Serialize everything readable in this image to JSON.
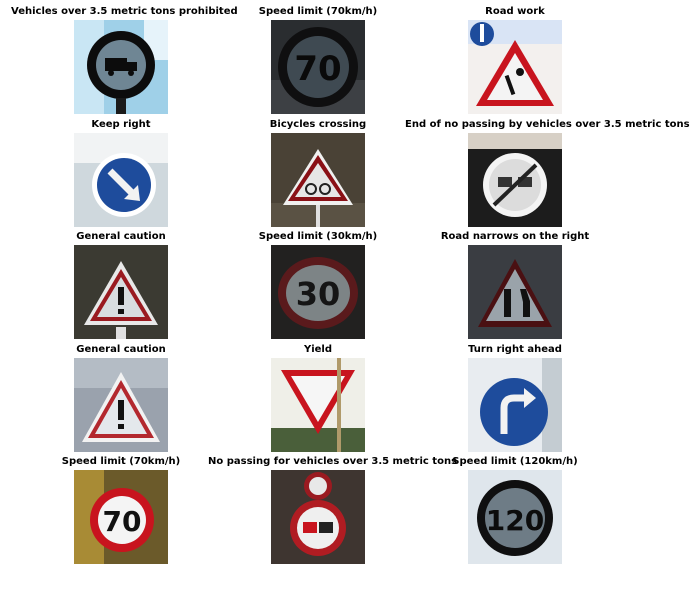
{
  "figure": {
    "panels": [
      {
        "title": "Vehicles over 3.5 metric tons prohibited",
        "sign": "truck-prohibited-sign"
      },
      {
        "title": "Speed limit (70km/h)",
        "sign": "speed-70-sign"
      },
      {
        "title": "Road work",
        "sign": "road-work-sign"
      },
      {
        "title": "Keep right",
        "sign": "keep-right-sign"
      },
      {
        "title": "Bicycles crossing",
        "sign": "bicycles-crossing-sign"
      },
      {
        "title": "End of no passing by vehicles over 3.5 metric tons",
        "sign": "end-no-passing-trucks-sign"
      },
      {
        "title": "General caution",
        "sign": "general-caution-sign"
      },
      {
        "title": "Speed limit (30km/h)",
        "sign": "speed-30-sign"
      },
      {
        "title": "Road narrows on the right",
        "sign": "road-narrows-right-sign"
      },
      {
        "title": "General caution",
        "sign": "general-caution-sign"
      },
      {
        "title": "Yield",
        "sign": "yield-sign"
      },
      {
        "title": "Turn right ahead",
        "sign": "turn-right-ahead-sign"
      },
      {
        "title": "Speed limit (70km/h)",
        "sign": "speed-70-sign"
      },
      {
        "title": "No passing for vehicles over 3.5 metric tons",
        "sign": "no-passing-trucks-sign"
      },
      {
        "title": "Speed limit (120km/h)",
        "sign": "speed-120-sign"
      }
    ],
    "colors": {
      "red": "#c8141e",
      "blue": "#1e4c9c",
      "white": "#f2f2f2",
      "black": "#111111"
    }
  }
}
